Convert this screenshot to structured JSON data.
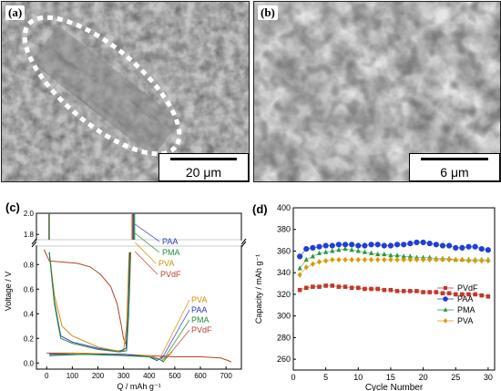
{
  "panels": {
    "a": {
      "label": "(a)",
      "scale": "20 μm"
    },
    "b": {
      "label": "(b)",
      "scale": "6 μm"
    },
    "c": {
      "label": "(c)"
    },
    "d": {
      "label": "(d)"
    }
  },
  "chart_data": [
    {
      "panel": "c",
      "type": "line",
      "xlabel": "Q / mAh g⁻¹",
      "ylabel": "Voltage / V",
      "xlim": [
        -40,
        760
      ],
      "xticks": [
        0,
        100,
        200,
        300,
        400,
        500,
        600,
        700
      ],
      "ylim_lower": [
        -0.05,
        0.95
      ],
      "yticks_lower": [
        0.0,
        0.2,
        0.4,
        0.6,
        0.8
      ],
      "ylim_upper": [
        1.75,
        2.0
      ],
      "yticks_upper": [
        1.8,
        2.0
      ],
      "series": [
        {
          "name": "PVdF",
          "color": "#b5402a",
          "points": [
            [
              -10,
              0.92
            ],
            [
              10,
              0.83
            ],
            [
              60,
              0.82
            ],
            [
              120,
              0.81
            ],
            [
              170,
              0.78
            ],
            [
              210,
              0.72
            ],
            [
              250,
              0.62
            ],
            [
              275,
              0.48
            ],
            [
              290,
              0.32
            ],
            [
              300,
              0.2
            ],
            [
              310,
              0.15
            ],
            [
              322,
              0.5
            ],
            [
              328,
              0.9
            ]
          ],
          "points2": [
            [
              0,
              0.08
            ],
            [
              100,
              0.08
            ],
            [
              300,
              0.07
            ],
            [
              400,
              0.06
            ],
            [
              500,
              0.05
            ],
            [
              600,
              0.05
            ],
            [
              680,
              0.04
            ],
            [
              720,
              0.01
            ]
          ]
        },
        {
          "name": "PVA",
          "color": "#d68a00",
          "points": [
            [
              10,
              0.9
            ],
            [
              30,
              0.55
            ],
            [
              60,
              0.3
            ],
            [
              100,
              0.22
            ],
            [
              200,
              0.13
            ],
            [
              270,
              0.1
            ],
            [
              300,
              0.1
            ],
            [
              312,
              0.3
            ],
            [
              322,
              0.9
            ]
          ],
          "points2": [
            [
              10,
              0.07
            ],
            [
              100,
              0.08
            ],
            [
              300,
              0.07
            ],
            [
              400,
              0.06
            ],
            [
              430,
              0.04
            ],
            [
              450,
              0.02
            ],
            [
              470,
              0.06
            ],
            [
              490,
              0.09
            ]
          ]
        },
        {
          "name": "PAA",
          "color": "#2838c8",
          "points": [
            [
              10,
              0.9
            ],
            [
              30,
              0.5
            ],
            [
              55,
              0.22
            ],
            [
              100,
              0.17
            ],
            [
              200,
              0.12
            ],
            [
              280,
              0.09
            ],
            [
              310,
              0.12
            ],
            [
              318,
              0.4
            ],
            [
              324,
              0.9
            ]
          ],
          "points2": [
            [
              10,
              0.07
            ],
            [
              150,
              0.07
            ],
            [
              300,
              0.07
            ],
            [
              400,
              0.05
            ],
            [
              430,
              0.02
            ],
            [
              445,
              0.04
            ],
            [
              460,
              0.06
            ]
          ]
        },
        {
          "name": "PMA",
          "color": "#1e8c3a",
          "points": [
            [
              10,
              0.9
            ],
            [
              30,
              0.48
            ],
            [
              55,
              0.2
            ],
            [
              100,
              0.16
            ],
            [
              200,
              0.11
            ],
            [
              285,
              0.09
            ],
            [
              312,
              0.1
            ],
            [
              320,
              0.4
            ],
            [
              326,
              0.9
            ]
          ],
          "points2": [
            [
              10,
              0.06
            ],
            [
              150,
              0.07
            ],
            [
              300,
              0.06
            ],
            [
              400,
              0.05
            ],
            [
              440,
              0.03
            ],
            [
              455,
              0.01
            ],
            [
              470,
              0.05
            ]
          ]
        }
      ],
      "legend_upper": [
        "PAA",
        "PMA",
        "PVA",
        "PVdF"
      ],
      "legend_lower": [
        "PVA",
        "PAA",
        "PMA",
        "PVdF"
      ]
    },
    {
      "panel": "d",
      "type": "scatter",
      "xlabel": "Cycle Number",
      "ylabel": "Capacity / mAh g⁻¹",
      "xlim": [
        0,
        31
      ],
      "ylim": [
        250,
        400
      ],
      "xticks": [
        0,
        5,
        10,
        15,
        20,
        25,
        30
      ],
      "yticks": [
        260,
        280,
        300,
        320,
        340,
        360,
        380,
        400
      ],
      "legend_position": "bottom-right",
      "series": [
        {
          "name": "PVdF",
          "color": "#c0392b",
          "marker": "square",
          "values": [
            324,
            326,
            327,
            327,
            328,
            328,
            327,
            327,
            326,
            326,
            325,
            325,
            325,
            324,
            324,
            323,
            323,
            323,
            323,
            322,
            322,
            322,
            321,
            321,
            320,
            320,
            320,
            320,
            319,
            318
          ]
        },
        {
          "name": "PAA",
          "color": "#1f3fd6",
          "marker": "circle",
          "values": [
            355,
            362,
            363,
            364,
            365,
            365,
            366,
            366,
            366,
            365,
            365,
            366,
            366,
            365,
            365,
            366,
            366,
            367,
            368,
            368,
            367,
            366,
            365,
            365,
            363,
            363,
            364,
            364,
            362,
            361
          ]
        },
        {
          "name": "PMA",
          "color": "#2a9a3e",
          "marker": "triangle",
          "values": [
            344,
            352,
            355,
            358,
            359,
            360,
            361,
            362,
            361,
            360,
            359,
            358,
            357,
            357,
            356,
            356,
            355,
            355,
            354,
            354,
            354,
            353,
            353,
            353,
            352,
            352,
            352,
            352,
            352,
            352
          ]
        },
        {
          "name": "PVA",
          "color": "#d99a00",
          "marker": "diamond",
          "values": [
            338,
            345,
            348,
            350,
            351,
            352,
            352,
            352,
            352,
            352,
            352,
            352,
            352,
            352,
            352,
            352,
            352,
            352,
            352,
            352,
            352,
            352,
            352,
            352,
            352,
            352,
            351,
            351,
            351,
            351
          ]
        }
      ]
    }
  ]
}
